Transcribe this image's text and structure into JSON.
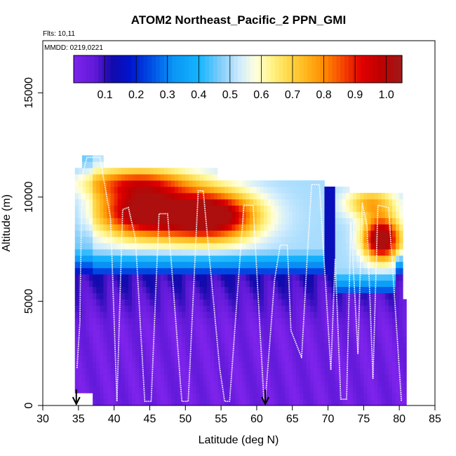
{
  "chart_data": {
    "type": "heatmap",
    "title": "ATOM2 Northeast_Pacific_2 PPN_GMI",
    "annotations": [
      "Flts: 10,11",
      "MMDD: 0219,0221"
    ],
    "xlabel": "Latitude (deg N)",
    "ylabel": "Altitude (m)",
    "xlim": [
      30,
      85
    ],
    "ylim": [
      0,
      17500
    ],
    "x_ticks": [
      30,
      35,
      40,
      45,
      50,
      55,
      60,
      65,
      70,
      75,
      80,
      85
    ],
    "y_ticks": [
      0,
      5000,
      10000,
      15000
    ],
    "colorbar": {
      "ticks": [
        0.1,
        0.2,
        0.3,
        0.4,
        0.5,
        0.6,
        0.7,
        0.8,
        0.9,
        1.0
      ],
      "range": [
        0,
        1.05
      ],
      "placement": "top"
    },
    "flight_split_markers": [
      34.7,
      61.2
    ],
    "flight_track": [
      [
        34.8,
        1800
      ],
      [
        35.2,
        4000
      ],
      [
        35.5,
        11000
      ],
      [
        36.2,
        11900
      ],
      [
        38,
        11900
      ],
      [
        39.5,
        9000
      ],
      [
        40.4,
        200
      ],
      [
        41.2,
        9400
      ],
      [
        42,
        9500
      ],
      [
        43,
        8000
      ],
      [
        44.3,
        200
      ],
      [
        45.2,
        200
      ],
      [
        46.3,
        9200
      ],
      [
        47.5,
        9200
      ],
      [
        49.5,
        200
      ],
      [
        50.4,
        200
      ],
      [
        51.8,
        10300
      ],
      [
        52.5,
        10300
      ],
      [
        54.8,
        1800
      ],
      [
        55.5,
        200
      ],
      [
        56.2,
        200
      ],
      [
        58.2,
        9600
      ],
      [
        59.5,
        9600
      ],
      [
        61,
        300
      ],
      [
        61.2,
        200
      ],
      [
        62.5,
        6000
      ],
      [
        63.3,
        7700
      ],
      [
        64.3,
        7700
      ],
      [
        64.8,
        3600
      ],
      [
        66.3,
        2300
      ],
      [
        67.2,
        7800
      ],
      [
        67.7,
        10600
      ],
      [
        68.8,
        10600
      ],
      [
        70.4,
        1700
      ],
      [
        71,
        7000
      ],
      [
        71.8,
        300
      ],
      [
        72.6,
        300
      ],
      [
        73.2,
        8800
      ],
      [
        74.2,
        2500
      ],
      [
        74.8,
        9700
      ],
      [
        75.5,
        8600
      ],
      [
        76.3,
        1300
      ],
      [
        77,
        9600
      ],
      [
        78.5,
        9500
      ],
      [
        80.3,
        200
      ]
    ]
  }
}
